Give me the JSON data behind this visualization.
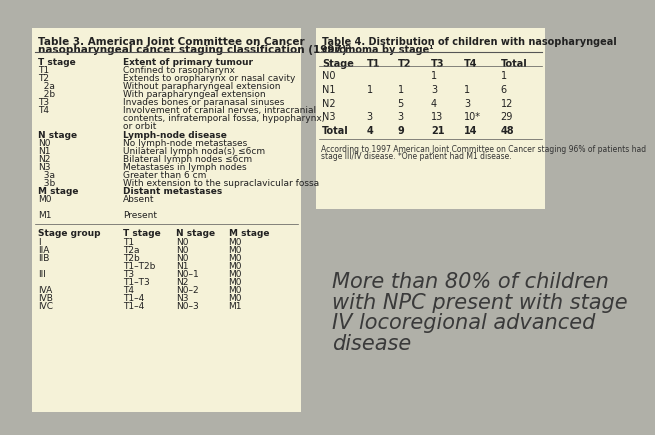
{
  "bg_color": "#b0b0a8",
  "table_bg": "#f5f2d8",
  "table3_stage_rows": [
    [
      "I",
      "T1",
      "N0",
      "M0"
    ],
    [
      "IIA",
      "T2a",
      "N0",
      "M0"
    ],
    [
      "IIB",
      "T2b",
      "N0",
      "M0"
    ],
    [
      "",
      "T1–T2b",
      "N1",
      "M0"
    ],
    [
      "III",
      "T3",
      "N0–1",
      "M0"
    ],
    [
      "",
      "T1–T3",
      "N2",
      "M0"
    ],
    [
      "IVA",
      "T4",
      "N0–2",
      "M0"
    ],
    [
      "IVB",
      "T1–4",
      "N3",
      "M0"
    ],
    [
      "IVC",
      "T1–4",
      "N0–3",
      "M1"
    ]
  ],
  "table4_header": [
    "Stage",
    "T1",
    "T2",
    "T3",
    "T4",
    "Total"
  ],
  "table4_rows": [
    [
      "N0",
      "",
      "",
      "1",
      "",
      "1"
    ],
    [
      "N1",
      "1",
      "1",
      "3",
      "1",
      "6"
    ],
    [
      "N2",
      "",
      "5",
      "4",
      "3",
      "12"
    ],
    [
      "N3",
      "3",
      "3",
      "13",
      "10*",
      "29"
    ],
    [
      "Total",
      "4",
      "9",
      "21",
      "14",
      "48"
    ]
  ],
  "table4_footnote": "According to 1997 American Joint Committee on Cancer staging 96% of patients had\nstage III/IV disease. *One patient had M1 disease.",
  "annotation_text": "More than 80% of children\nwith NPC present with stage\nIV locoregional advanced\ndisease",
  "annotation_fontsize": 15,
  "annotation_color": "#3a3a3a"
}
